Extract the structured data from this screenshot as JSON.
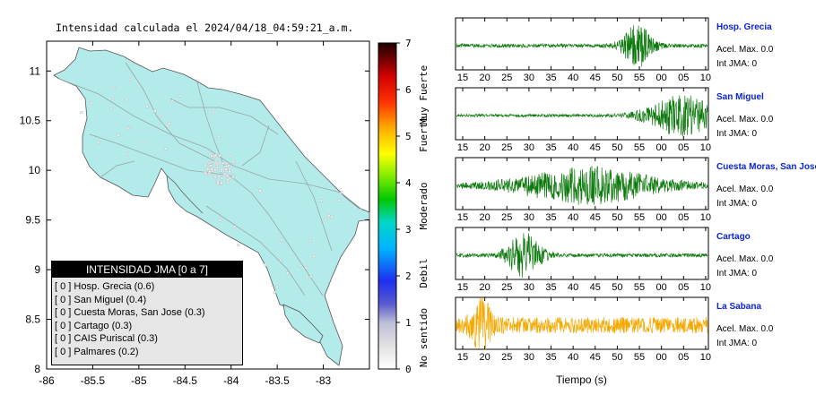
{
  "map": {
    "title": "Intensidad calculada el 2024/04/18_04:59:21_a.m.",
    "x_ticks": [
      "-86",
      "-85.5",
      "-85",
      "-84.5",
      "-84",
      "-83.5",
      "-83"
    ],
    "y_ticks": [
      "11",
      "10.5",
      "10",
      "9.5",
      "9",
      "8.5",
      "8"
    ],
    "xlim": [
      -86,
      -82.5
    ],
    "ylim": [
      8,
      11.3
    ],
    "land_color": "#b3eaea",
    "legend_title": "INTENSIDAD JMA [0 a 7]",
    "legend_rows": [
      "[ 0 ]  Hosp. Grecia (0.6)",
      "[ 0 ]  San Miguel (0.4)",
      "[ 0 ]  Cuesta Moras, San Jose (0.3)",
      "[ 0 ]  Cartago (0.3)",
      "[ 0 ]  CAIS Puriscal (0.3)",
      "[ 0 ]  Palmares (0.2)"
    ]
  },
  "colorbar": {
    "ticks": [
      "7",
      "6",
      "5",
      "4",
      "3",
      "2",
      "1",
      "0"
    ],
    "range": [
      0,
      7
    ],
    "labels": [
      "Muy Fuerte",
      "Fuerte",
      "Moderado",
      "Debil",
      "No sentido"
    ]
  },
  "chart_data": {
    "type": "line",
    "xlabel": "Tiempo (s)",
    "x_ticks": [
      "15",
      "20",
      "25",
      "30",
      "35",
      "40",
      "45",
      "50",
      "55",
      "00",
      "05",
      "10"
    ],
    "series": [
      {
        "name": "Hosp. Grecia",
        "accel": "Acel. Max. 0.0",
        "int": "Int JMA: 0",
        "color": "#0d7a0d",
        "burst_center": 0.72,
        "burst_width": 0.06,
        "base_amp": 0.08,
        "burst_amp": 0.9
      },
      {
        "name": "San Miguel",
        "accel": "Acel. Max. 0.0",
        "int": "Int JMA: 0",
        "color": "#0d7a0d",
        "burst_center": 0.9,
        "burst_width": 0.14,
        "base_amp": 0.06,
        "burst_amp": 0.85
      },
      {
        "name": "Cuesta Moras, San Jose",
        "accel": "Acel. Max. 0.0",
        "int": "Int JMA: 0",
        "color": "#0d7a0d",
        "burst_center": 0.52,
        "burst_width": 0.28,
        "base_amp": 0.1,
        "burst_amp": 0.75
      },
      {
        "name": "Cartago",
        "accel": "Acel. Max. 0.0",
        "int": "Int JMA: 0",
        "color": "#0d7a0d",
        "burst_center": 0.27,
        "burst_width": 0.07,
        "base_amp": 0.08,
        "burst_amp": 0.95
      },
      {
        "name": "La Sabana",
        "accel": "Acel. Max. 0.0",
        "int": "Int JMA: 0",
        "color": "#f5a800",
        "burst_center": 0.1,
        "burst_width": 0.04,
        "base_amp": 0.35,
        "burst_amp": 0.9
      }
    ]
  }
}
